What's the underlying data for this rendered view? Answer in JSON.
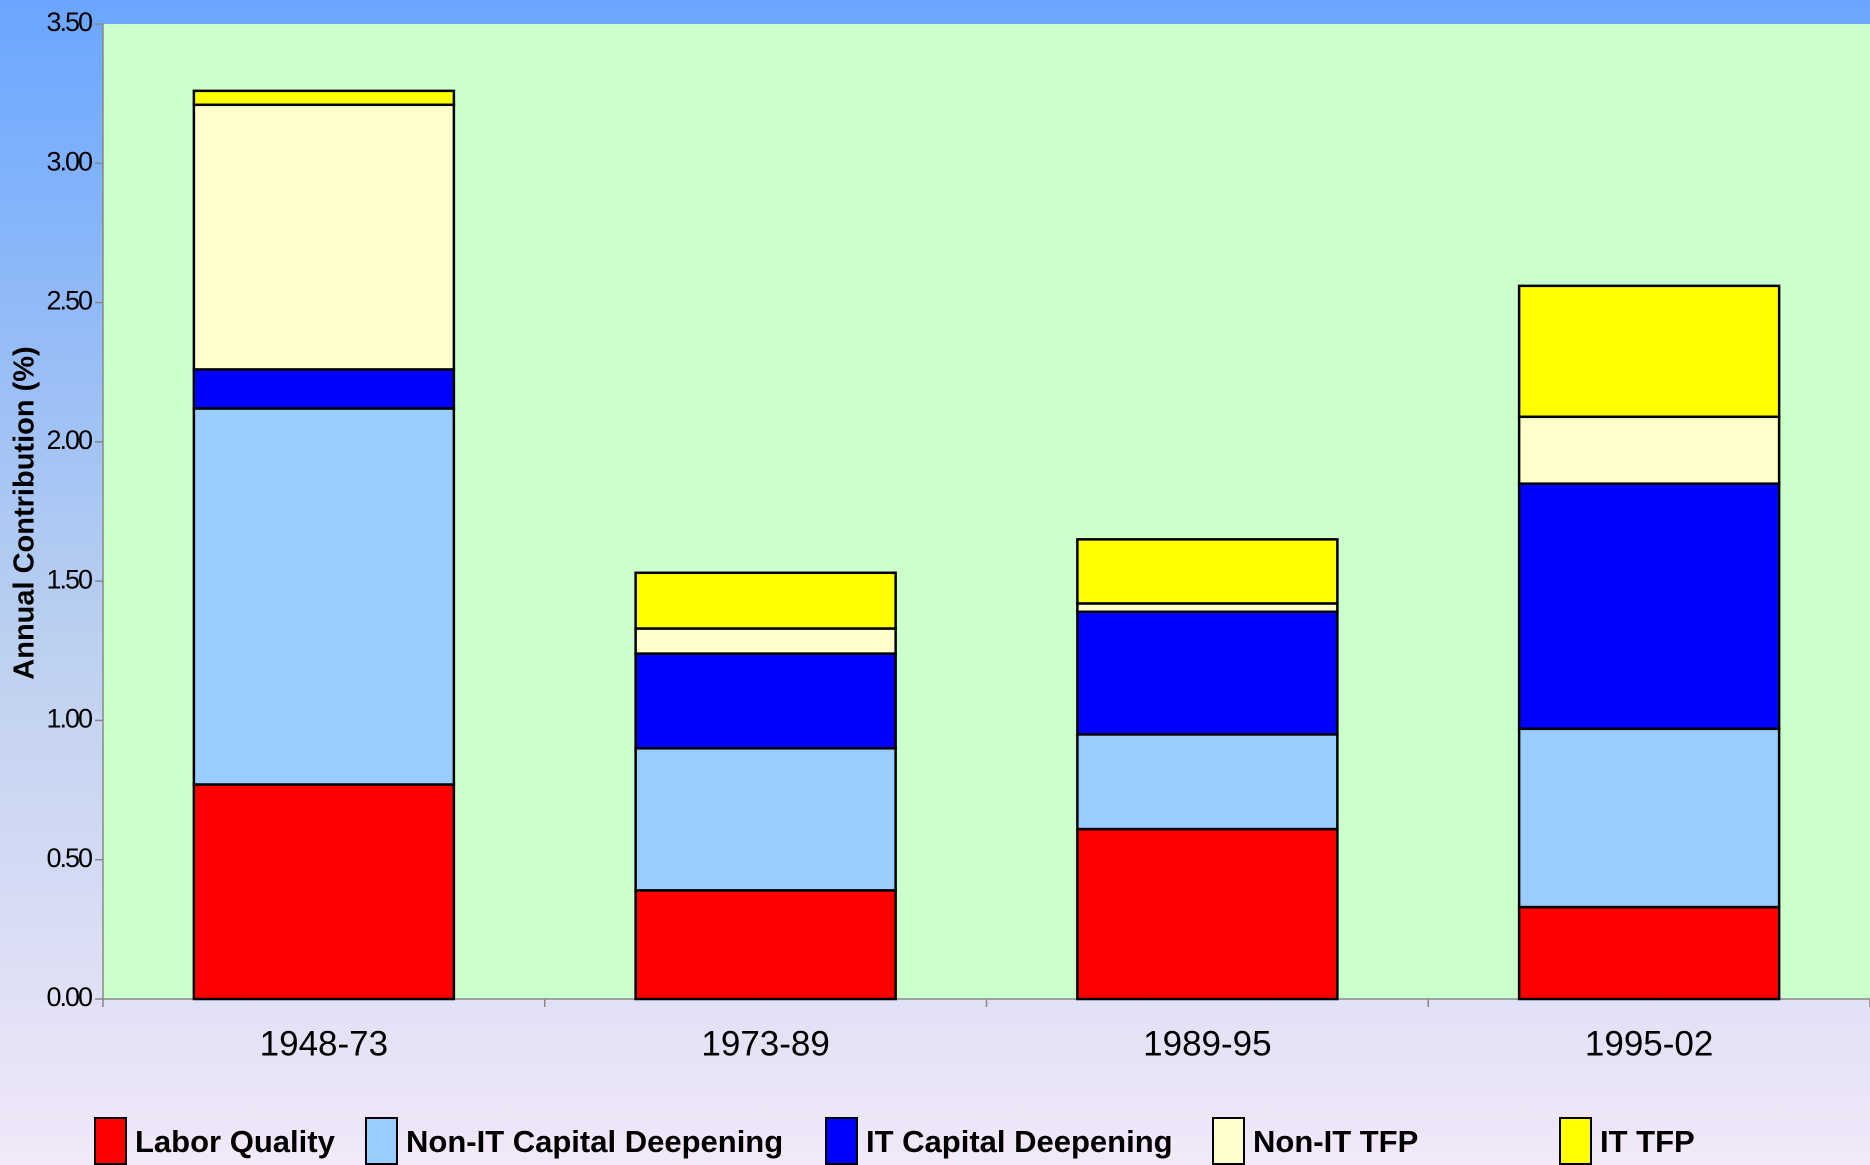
{
  "chart_data": {
    "type": "stacked_bar",
    "y_label": "Annual Contribution (%)",
    "categories": [
      "1948-73",
      "1973-89",
      "1989-95",
      "1995-02"
    ],
    "series": [
      {
        "name": "Labor Quality",
        "color": "#ff0000",
        "values": [
          0.77,
          0.39,
          0.61,
          0.33
        ]
      },
      {
        "name": "Non-IT Capital Deepening",
        "color": "#99ccff",
        "values": [
          1.35,
          0.51,
          0.34,
          0.64
        ]
      },
      {
        "name": "IT Capital Deepening",
        "color": "#0000ff",
        "values": [
          0.14,
          0.34,
          0.44,
          0.88
        ]
      },
      {
        "name": "Non-IT TFP",
        "color": "#ffffcc",
        "values": [
          0.95,
          0.09,
          0.03,
          0.24
        ]
      },
      {
        "name": "IT TFP",
        "color": "#ffff00",
        "values": [
          0.05,
          0.2,
          0.23,
          0.47
        ]
      }
    ],
    "ylim": [
      0,
      3.5
    ],
    "yticks": [
      {
        "value": 0,
        "label": "0.00"
      },
      {
        "value": 0.5,
        "label": "0.50"
      },
      {
        "value": 1,
        "label": "1.00"
      },
      {
        "value": 1.5,
        "label": "1.50"
      },
      {
        "value": 2,
        "label": "2.00"
      },
      {
        "value": 2.5,
        "label": "2.50"
      },
      {
        "value": 3,
        "label": "3.00"
      },
      {
        "value": 3.5,
        "label": "3.50"
      }
    ],
    "legend": "bottom"
  }
}
